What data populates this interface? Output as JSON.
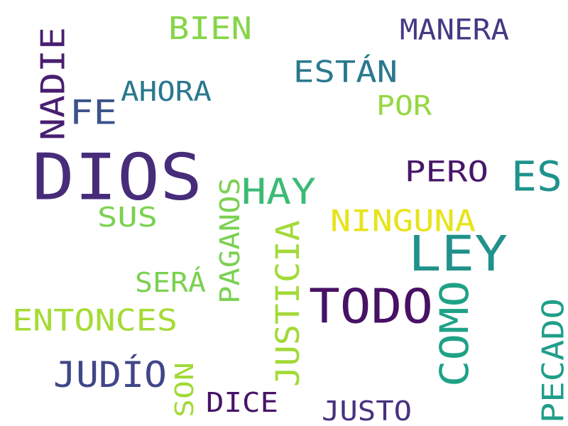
{
  "words": {
    "dios": {
      "text": "DIOS",
      "color": "#472c7a"
    },
    "ley": {
      "text": "LEY",
      "color": "#21918c"
    },
    "todo": {
      "text": "TODO",
      "color": "#471164"
    },
    "hay": {
      "text": "HAY",
      "color": "#3bbb75"
    },
    "es": {
      "text": "ES",
      "color": "#20928c"
    },
    "fe": {
      "text": "FE",
      "color": "#3b528b"
    },
    "nadie": {
      "text": "NADIE",
      "color": "#481f70"
    },
    "bien": {
      "text": "BIEN",
      "color": "#86d549"
    },
    "manera": {
      "text": "MANERA",
      "color": "#443983"
    },
    "estan": {
      "text": "ESTÁN",
      "color": "#2a788e"
    },
    "ahora": {
      "text": "AHORA",
      "color": "#2a788e"
    },
    "por": {
      "text": "POR",
      "color": "#95d840"
    },
    "pero": {
      "text": "PERO",
      "color": "#481769"
    },
    "ninguna": {
      "text": "NINGUNA",
      "color": "#e7e419"
    },
    "sus": {
      "text": "SUS",
      "color": "#7ad151"
    },
    "paganos": {
      "text": "PAGANOS",
      "color": "#7ad151"
    },
    "justicia": {
      "text": "JUSTICIA",
      "color": "#a2da37"
    },
    "como": {
      "text": "COMO",
      "color": "#1fa187"
    },
    "sera": {
      "text": "SERÁ",
      "color": "#7ad151"
    },
    "entonces": {
      "text": "ENTONCES",
      "color": "#a5db36"
    },
    "judio": {
      "text": "JUDÍO",
      "color": "#404688"
    },
    "son": {
      "text": "SON",
      "color": "#a2da37"
    },
    "dice": {
      "text": "DICE",
      "color": "#481467"
    },
    "justo": {
      "text": "JUSTO",
      "color": "#46327e"
    },
    "pecado": {
      "text": "PECADO",
      "color": "#1f9e89"
    }
  }
}
